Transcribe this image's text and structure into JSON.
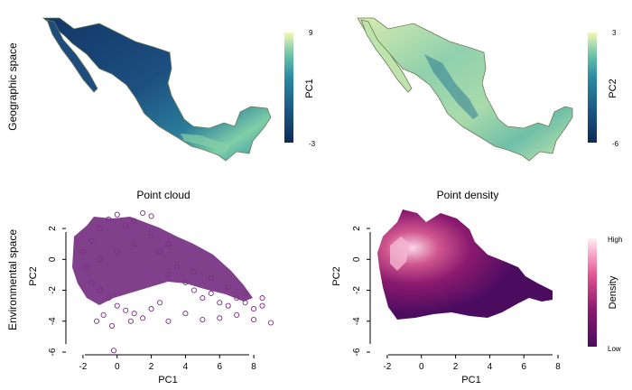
{
  "row_labels": {
    "top": "Geographic space",
    "bottom": "Environmental space"
  },
  "colors": {
    "viridis_dark": "#0f2a59",
    "viridis_mid": "#2a8da0",
    "viridis_light": "#f3f7b6",
    "point_purple": "#7b2d83",
    "density_low": "#4b0c60",
    "density_high": "#fdf0f6"
  },
  "chart_data": [
    {
      "id": "map-pc1",
      "type": "heatmap",
      "title": "",
      "legend_title": "PC1",
      "legend_max": "9",
      "legend_min": "-3",
      "legend_placement": "right",
      "description_only_visual": "map of Mexico colored by PC1"
    },
    {
      "id": "map-pc2",
      "type": "heatmap",
      "title": "",
      "legend_title": "PC2",
      "legend_max": "3",
      "legend_min": "-6",
      "legend_placement": "right"
    },
    {
      "id": "point-cloud",
      "type": "scatter",
      "title": "Point cloud",
      "xlabel": "PC1",
      "ylabel": "PC2",
      "xlim": [
        -3,
        9
      ],
      "ylim": [
        -6,
        3
      ],
      "xticks": [
        "-2",
        "0",
        "2",
        "4",
        "6",
        "8"
      ],
      "yticks": [
        "-6",
        "-4",
        "-2",
        "0",
        "2"
      ],
      "grid": false,
      "points": [
        [
          -1.5,
          1.2
        ],
        [
          -1.0,
          2.0
        ],
        [
          -0.5,
          2.6
        ],
        [
          0.0,
          2.9
        ],
        [
          0.5,
          2.2
        ],
        [
          1.0,
          2.5
        ],
        [
          1.5,
          3.0
        ],
        [
          2.0,
          2.8
        ],
        [
          -2.0,
          0.5
        ],
        [
          -1.8,
          -0.5
        ],
        [
          -1.5,
          -1.5
        ],
        [
          -1.0,
          -2.0
        ],
        [
          -0.5,
          -2.5
        ],
        [
          0.0,
          -3.0
        ],
        [
          0.5,
          -3.3
        ],
        [
          1.0,
          -3.5
        ],
        [
          -1.2,
          -4.0
        ],
        [
          -0.8,
          -3.6
        ],
        [
          -0.3,
          -4.3
        ],
        [
          -0.2,
          -5.9
        ],
        [
          0.8,
          -4.0
        ],
        [
          1.5,
          -3.8
        ],
        [
          2.0,
          -3.2
        ],
        [
          2.5,
          -2.8
        ],
        [
          3.0,
          -1.0
        ],
        [
          3.5,
          -0.5
        ],
        [
          4.0,
          -1.5
        ],
        [
          4.5,
          -2.0
        ],
        [
          5.0,
          -2.5
        ],
        [
          5.5,
          -2.2
        ],
        [
          6.0,
          -2.8
        ],
        [
          6.5,
          -3.0
        ],
        [
          7.0,
          -2.5
        ],
        [
          7.5,
          -2.8
        ],
        [
          8.0,
          -3.2
        ],
        [
          8.5,
          -3.0
        ],
        [
          9.0,
          -4.1
        ],
        [
          8.0,
          -3.9
        ],
        [
          6.0,
          -3.8
        ],
        [
          4.0,
          -3.5
        ],
        [
          3.0,
          -4.0
        ],
        [
          5.0,
          -3.9
        ],
        [
          7.0,
          -3.6
        ],
        [
          2.5,
          0.5
        ],
        [
          3.0,
          1.0
        ],
        [
          2.0,
          1.5
        ],
        [
          1.0,
          1.0
        ],
        [
          0.0,
          0.5
        ],
        [
          -1.0,
          0.0
        ],
        [
          4.5,
          -0.8
        ],
        [
          5.5,
          -1.2
        ],
        [
          6.5,
          -1.8
        ],
        [
          7.5,
          -2.2
        ],
        [
          8.5,
          -2.5
        ]
      ]
    },
    {
      "id": "point-density",
      "type": "heatmap",
      "title": "Point density",
      "xlabel": "PC1",
      "ylabel": "PC2",
      "xlim": [
        -3,
        9
      ],
      "ylim": [
        -6,
        3
      ],
      "xticks": [
        "-2",
        "0",
        "2",
        "4",
        "6",
        "8"
      ],
      "yticks": [
        "-6",
        "-4",
        "-2",
        "0",
        "2"
      ],
      "legend_title": "Density",
      "legend_max": "High",
      "legend_min": "Low",
      "legend_placement": "right"
    }
  ]
}
